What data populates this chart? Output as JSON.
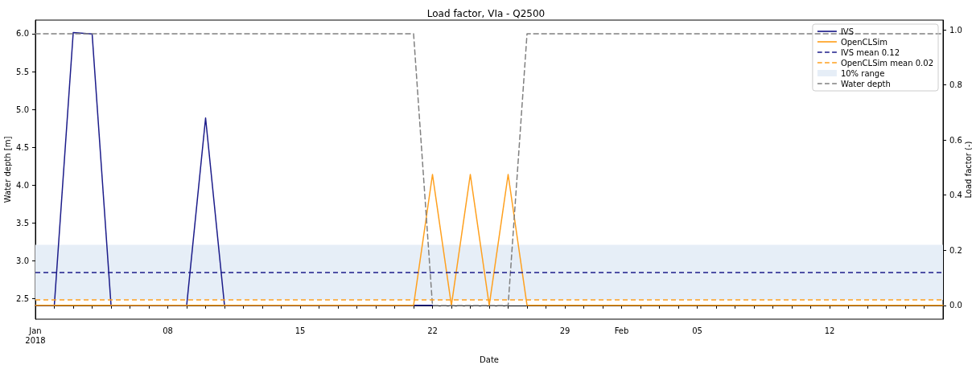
{
  "chart_data": {
    "type": "line",
    "title": "Load factor, VIa - Q2500",
    "xlabel": "Date",
    "ylabel": "Water depth [m]",
    "y2label": "Load factor (-)",
    "series": [
      {
        "name": "IVS",
        "color": "#1c1c8a",
        "axis": "y2",
        "line_style": "solid",
        "x": [
          "2018-01-01",
          "2018-01-02",
          "2018-01-03",
          "2018-01-04",
          "2018-01-05",
          "2018-01-09",
          "2018-01-10",
          "2018-01-11",
          "2018-01-21",
          "2018-01-22"
        ],
        "values": [
          0,
          0,
          0.99,
          0.985,
          0,
          0,
          0.68,
          0,
          0,
          0
        ]
      },
      {
        "name": "OpenCLSim",
        "color": "#ffa01e",
        "axis": "y2",
        "line_style": "solid",
        "x": [
          "2018-01-01",
          "2018-01-21",
          "2018-01-22",
          "2018-01-23",
          "2018-01-24",
          "2018-01-25",
          "2018-01-26",
          "2018-01-27",
          "2018-02-18"
        ],
        "values": [
          0,
          0,
          0.475,
          0,
          0.475,
          0,
          0.475,
          0,
          0
        ]
      },
      {
        "name": "Water depth",
        "color": "#808080",
        "axis": "y",
        "line_style": "dashed",
        "x": [
          "2018-01-01",
          "2018-01-21",
          "2018-01-22",
          "2018-01-26",
          "2018-01-27",
          "2018-02-18"
        ],
        "values": [
          6.0,
          6.0,
          2.41,
          2.41,
          6.0,
          6.0
        ]
      }
    ],
    "ref_lines": [
      {
        "axis": "y2",
        "value": 0.12,
        "label": "IVS mean 0.12",
        "color": "#1c1c8a",
        "line_style": "dashed"
      },
      {
        "axis": "y2",
        "value": 0.02,
        "label": "OpenCLSim mean 0.02",
        "color": "#ffa01e",
        "line_style": "dashed"
      }
    ],
    "bands": [
      {
        "axis": "y2",
        "from": 0.02,
        "to": 0.22,
        "label": "10% range",
        "color": "#e6eef7"
      }
    ],
    "xlim": [
      "2018-01-01",
      "2018-02-18"
    ],
    "xticks": [
      {
        "value": "2018-01-01",
        "label": "Jan\n2018"
      },
      {
        "value": "2018-01-02",
        "label": null
      },
      {
        "value": "2018-01-03",
        "label": null
      },
      {
        "value": "2018-01-04",
        "label": null
      },
      {
        "value": "2018-01-05",
        "label": null
      },
      {
        "value": "2018-01-06",
        "label": null
      },
      {
        "value": "2018-01-07",
        "label": null
      },
      {
        "value": "2018-01-08",
        "label": "08"
      },
      {
        "value": "2018-01-09",
        "label": null
      },
      {
        "value": "2018-01-10",
        "label": null
      },
      {
        "value": "2018-01-11",
        "label": null
      },
      {
        "value": "2018-01-12",
        "label": null
      },
      {
        "value": "2018-01-13",
        "label": null
      },
      {
        "value": "2018-01-14",
        "label": null
      },
      {
        "value": "2018-01-15",
        "label": "15"
      },
      {
        "value": "2018-01-16",
        "label": null
      },
      {
        "value": "2018-01-17",
        "label": null
      },
      {
        "value": "2018-01-18",
        "label": null
      },
      {
        "value": "2018-01-19",
        "label": null
      },
      {
        "value": "2018-01-20",
        "label": null
      },
      {
        "value": "2018-01-21",
        "label": null
      },
      {
        "value": "2018-01-22",
        "label": "22"
      },
      {
        "value": "2018-01-23",
        "label": null
      },
      {
        "value": "2018-01-24",
        "label": null
      },
      {
        "value": "2018-01-25",
        "label": null
      },
      {
        "value": "2018-01-26",
        "label": null
      },
      {
        "value": "2018-01-27",
        "label": null
      },
      {
        "value": "2018-01-28",
        "label": null
      },
      {
        "value": "2018-01-29",
        "label": "29"
      },
      {
        "value": "2018-01-30",
        "label": null
      },
      {
        "value": "2018-01-31",
        "label": null
      },
      {
        "value": "2018-02-01",
        "label": "Feb"
      },
      {
        "value": "2018-02-02",
        "label": null
      },
      {
        "value": "2018-02-03",
        "label": null
      },
      {
        "value": "2018-02-04",
        "label": null
      },
      {
        "value": "2018-02-05",
        "label": "05"
      },
      {
        "value": "2018-02-06",
        "label": null
      },
      {
        "value": "2018-02-07",
        "label": null
      },
      {
        "value": "2018-02-08",
        "label": null
      },
      {
        "value": "2018-02-09",
        "label": null
      },
      {
        "value": "2018-02-10",
        "label": null
      },
      {
        "value": "2018-02-11",
        "label": null
      },
      {
        "value": "2018-02-12",
        "label": "12"
      },
      {
        "value": "2018-02-13",
        "label": null
      },
      {
        "value": "2018-02-14",
        "label": null
      },
      {
        "value": "2018-02-15",
        "label": null
      },
      {
        "value": "2018-02-16",
        "label": null
      },
      {
        "value": "2018-02-17",
        "label": null
      }
    ],
    "ylim": [
      2.23,
      6.18
    ],
    "yticks": [
      2.5,
      {
        "value": 3,
        "label": "3.0"
      },
      3.5,
      {
        "value": 4,
        "label": "4.0"
      },
      4.5,
      {
        "value": 5,
        "label": "5.0"
      },
      5.5,
      {
        "value": 6,
        "label": "6.0"
      }
    ],
    "y2lim": [
      -0.05,
      1.035
    ],
    "y2ticks": [
      {
        "value": 0,
        "label": "0.0"
      },
      0.2,
      0.4,
      0.6,
      0.8,
      {
        "value": 1,
        "label": "1.0"
      }
    ],
    "grid": false,
    "legend": "top right",
    "marker": "none"
  }
}
